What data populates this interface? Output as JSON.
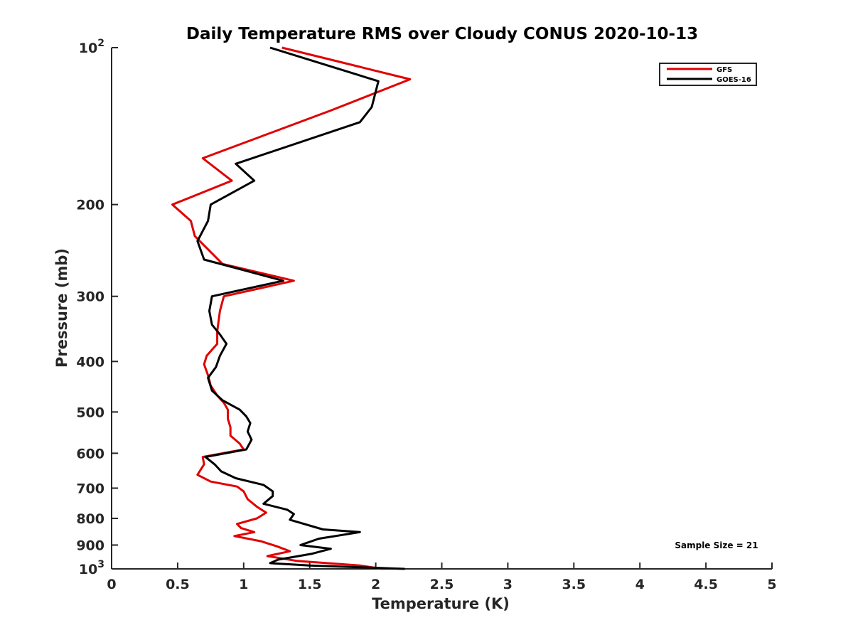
{
  "chart_data": {
    "type": "line",
    "title": "Daily Temperature RMS over Cloudy CONUS 2020-10-13",
    "xlabel": "Temperature (K)",
    "ylabel": "Pressure (mb)",
    "xlim": [
      0,
      5
    ],
    "ylim": [
      100,
      1000
    ],
    "y_scale": "log",
    "y_reversed": true,
    "grid": false,
    "legend_position": "top-right",
    "x_ticks": [
      0,
      0.5,
      1,
      1.5,
      2,
      2.5,
      3,
      3.5,
      4,
      4.5,
      5
    ],
    "x_tick_labels": [
      "0",
      "0.5",
      "1",
      "1.5",
      "2",
      "2.5",
      "3",
      "3.5",
      "4",
      "4.5",
      "5"
    ],
    "y_ticks": [
      100,
      200,
      300,
      400,
      500,
      600,
      700,
      800,
      900,
      1000
    ],
    "y_tick_labels": [
      "10^2",
      "200",
      "300",
      "400",
      "500",
      "600",
      "700",
      "800",
      "900",
      "10^3"
    ],
    "annotations": [
      "Sample Size = 21"
    ],
    "series": [
      {
        "name": "GFS",
        "color": "#e00000",
        "points": [
          [
            1.29,
            100
          ],
          [
            2.26,
            115
          ],
          [
            1.66,
            132
          ],
          [
            0.69,
            163
          ],
          [
            0.91,
            180
          ],
          [
            0.46,
            200
          ],
          [
            0.6,
            215
          ],
          [
            0.63,
            230
          ],
          [
            0.84,
            260
          ],
          [
            1.38,
            280
          ],
          [
            0.85,
            300
          ],
          [
            0.82,
            320
          ],
          [
            0.8,
            350
          ],
          [
            0.8,
            370
          ],
          [
            0.72,
            390
          ],
          [
            0.7,
            405
          ],
          [
            0.73,
            425
          ],
          [
            0.75,
            445
          ],
          [
            0.8,
            465
          ],
          [
            0.85,
            480
          ],
          [
            0.88,
            495
          ],
          [
            0.88,
            515
          ],
          [
            0.9,
            535
          ],
          [
            0.9,
            555
          ],
          [
            0.97,
            575
          ],
          [
            1.0,
            590
          ],
          [
            0.69,
            610
          ],
          [
            0.7,
            630
          ],
          [
            0.65,
            660
          ],
          [
            0.75,
            680
          ],
          [
            0.95,
            695
          ],
          [
            1.0,
            710
          ],
          [
            1.03,
            735
          ],
          [
            1.1,
            760
          ],
          [
            1.17,
            780
          ],
          [
            1.1,
            800
          ],
          [
            0.95,
            820
          ],
          [
            0.98,
            835
          ],
          [
            1.08,
            850
          ],
          [
            0.93,
            865
          ],
          [
            1.13,
            885
          ],
          [
            1.25,
            905
          ],
          [
            1.35,
            925
          ],
          [
            1.18,
            945
          ],
          [
            1.4,
            965
          ],
          [
            1.88,
            985
          ],
          [
            2.05,
            1000
          ]
        ]
      },
      {
        "name": "GOES-16",
        "color": "#000000",
        "points": [
          [
            1.2,
            100
          ],
          [
            2.02,
            116
          ],
          [
            1.97,
            130
          ],
          [
            1.88,
            139
          ],
          [
            0.94,
            167
          ],
          [
            1.08,
            180
          ],
          [
            0.75,
            200
          ],
          [
            0.73,
            215
          ],
          [
            0.65,
            235
          ],
          [
            0.7,
            255
          ],
          [
            1.3,
            280
          ],
          [
            0.76,
            300
          ],
          [
            0.74,
            320
          ],
          [
            0.76,
            340
          ],
          [
            0.82,
            355
          ],
          [
            0.87,
            370
          ],
          [
            0.82,
            390
          ],
          [
            0.79,
            410
          ],
          [
            0.73,
            430
          ],
          [
            0.76,
            455
          ],
          [
            0.84,
            475
          ],
          [
            0.97,
            495
          ],
          [
            1.02,
            510
          ],
          [
            1.05,
            525
          ],
          [
            1.03,
            545
          ],
          [
            1.06,
            565
          ],
          [
            1.02,
            590
          ],
          [
            0.71,
            610
          ],
          [
            0.78,
            630
          ],
          [
            0.83,
            650
          ],
          [
            0.94,
            670
          ],
          [
            1.15,
            690
          ],
          [
            1.22,
            710
          ],
          [
            1.22,
            725
          ],
          [
            1.15,
            750
          ],
          [
            1.33,
            770
          ],
          [
            1.38,
            785
          ],
          [
            1.35,
            805
          ],
          [
            1.6,
            840
          ],
          [
            1.88,
            850
          ],
          [
            1.57,
            875
          ],
          [
            1.43,
            900
          ],
          [
            1.66,
            915
          ],
          [
            1.52,
            935
          ],
          [
            1.26,
            960
          ],
          [
            1.2,
            975
          ],
          [
            1.5,
            985
          ],
          [
            2.22,
            1000
          ]
        ]
      }
    ]
  }
}
